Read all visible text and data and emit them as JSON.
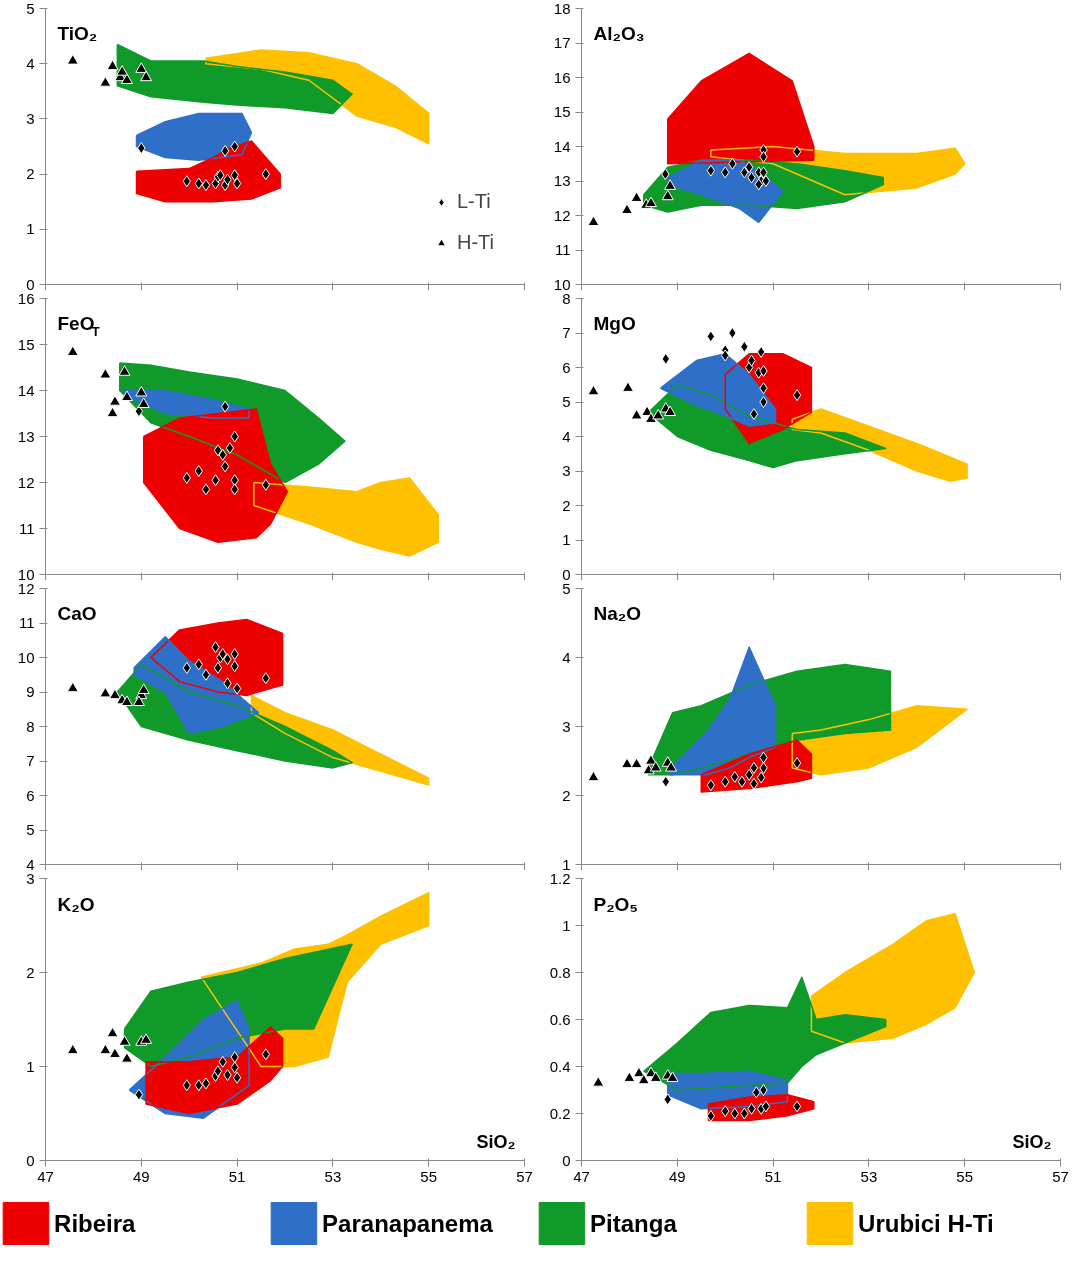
{
  "chart_data": [
    {
      "type": "scatter",
      "title": "TiO₂",
      "xlim": [
        47,
        57
      ],
      "xticks": [
        47,
        49,
        51,
        53,
        55,
        57
      ],
      "ylim": [
        0,
        5
      ],
      "yticks": [
        0,
        1,
        2,
        3,
        4,
        5
      ],
      "tick_labels": "y",
      "legend": "bottom right",
      "series": [
        {
          "type": "area",
          "color": "#ffc000",
          "x": [
            50.35,
            51.5,
            52.5,
            53.5,
            54.3,
            55,
            55,
            54.3,
            53.5,
            52.5,
            51.5,
            50.35
          ],
          "values": [
            4.1,
            4.25,
            4.2,
            4.0,
            3.6,
            3.1,
            2.55,
            2.85,
            3.05,
            3.7,
            3.9,
            4.0
          ]
        },
        {
          "type": "area",
          "color": "#109a2a",
          "x": [
            48.5,
            49.2,
            50.3,
            51,
            52,
            53,
            53.4,
            53,
            52,
            51,
            50.3,
            49.2,
            48.5
          ],
          "values": [
            4.35,
            4.05,
            4.05,
            3.95,
            3.85,
            3.7,
            3.45,
            3.1,
            3.2,
            3.25,
            3.3,
            3.4,
            3.6
          ]
        },
        {
          "type": "area",
          "color": "#2e6fc8",
          "x": [
            48.9,
            49.5,
            50.2,
            51.1,
            51.3,
            51.1,
            50.2,
            49.5,
            48.9
          ],
          "values": [
            2.7,
            2.95,
            3.1,
            3.1,
            2.75,
            2.35,
            2.25,
            2.3,
            2.5
          ]
        },
        {
          "type": "area",
          "color": "#ee0000",
          "x": [
            48.9,
            49.5,
            50.0,
            50.5,
            50.8,
            51.3,
            51.9,
            51.9,
            51.3,
            50.5,
            49.5,
            48.9
          ],
          "values": [
            2.05,
            2.08,
            2.1,
            2.3,
            2.45,
            2.6,
            2.0,
            1.75,
            1.55,
            1.5,
            1.5,
            1.65
          ]
        },
        {
          "name": "L-Ti",
          "marker": "diamond",
          "color": "#000000",
          "x": [
            49.0,
            49.95,
            50.2,
            50.35,
            50.55,
            50.6,
            50.75,
            50.75,
            50.8,
            50.95,
            50.95,
            51.0,
            51.6,
            50.65
          ],
          "values": [
            2.47,
            1.87,
            1.83,
            1.8,
            1.83,
            1.95,
            1.8,
            2.42,
            1.9,
            1.98,
            2.5,
            1.83,
            2.0,
            1.98
          ]
        },
        {
          "name": "H-Ti",
          "marker": "triangle",
          "color": "#000000",
          "x": [
            47.57,
            48.25,
            48.4,
            48.56,
            48.7,
            48.6,
            49.0,
            49.1
          ],
          "values": [
            4.05,
            3.65,
            3.95,
            3.75,
            3.7,
            3.85,
            3.9,
            3.75
          ]
        }
      ]
    },
    {
      "type": "scatter",
      "title": "Al₂O₃",
      "xlim": [
        47,
        57
      ],
      "xticks": [
        47,
        49,
        51,
        53,
        55,
        57
      ],
      "ylim": [
        10,
        18
      ],
      "yticks": [
        10,
        11,
        12,
        13,
        14,
        15,
        16,
        17,
        18
      ],
      "tick_labels": "y",
      "series": [
        {
          "type": "area",
          "color": "#ffc000",
          "x": [
            49.7,
            51,
            52.5,
            54,
            54.8,
            55,
            54.8,
            54,
            52.5,
            51,
            49.7
          ],
          "values": [
            13.9,
            14.0,
            13.8,
            13.8,
            13.95,
            13.5,
            13.2,
            12.8,
            12.6,
            13.5,
            13.7
          ]
        },
        {
          "type": "area",
          "color": "#109a2a",
          "x": [
            48.3,
            48.8,
            49.5,
            50.5,
            51.5,
            52.5,
            53.3,
            53.3,
            52.5,
            51.5,
            50.5,
            49.5,
            48.8,
            48.3
          ],
          "values": [
            12.6,
            13.4,
            13.6,
            13.6,
            13.5,
            13.3,
            13.1,
            12.9,
            12.4,
            12.2,
            12.3,
            12.3,
            12.1,
            12.3
          ]
        },
        {
          "type": "area",
          "color": "#ee0000",
          "x": [
            48.8,
            49.5,
            50.5,
            51.4,
            51.85,
            51.85,
            48.8
          ],
          "values": [
            14.8,
            15.9,
            16.7,
            15.9,
            14.0,
            13.6,
            13.5
          ]
        },
        {
          "type": "area",
          "color": "#2e6fc8",
          "x": [
            48.8,
            49.5,
            50.3,
            50.7,
            51.2,
            50.7,
            50.3,
            49.5,
            48.8
          ],
          "values": [
            13.1,
            13.6,
            13.6,
            13.3,
            12.7,
            11.8,
            12.2,
            12.6,
            12.9
          ]
        },
        {
          "marker": "diamond",
          "color": "#000000",
          "x": [
            48.75,
            49.7,
            50.0,
            50.15,
            50.4,
            50.5,
            50.55,
            50.7,
            50.75,
            50.8,
            50.8,
            50.8,
            50.7,
            50.85,
            51.5
          ],
          "values": [
            13.2,
            13.3,
            13.25,
            13.5,
            13.25,
            13.4,
            13.1,
            13.25,
            13.0,
            13.25,
            13.9,
            13.7,
            12.9,
            13.0,
            13.85
          ]
        },
        {
          "marker": "triangle",
          "color": "#000000",
          "x": [
            47.25,
            47.95,
            48.15,
            48.35,
            48.45,
            48.8,
            48.85
          ],
          "values": [
            11.8,
            12.15,
            12.5,
            12.3,
            12.35,
            12.55,
            12.85
          ]
        }
      ]
    },
    {
      "type": "scatter",
      "title": "FeO$_{T}$",
      "xlim": [
        47,
        57
      ],
      "xticks": [
        47,
        49,
        51,
        53,
        55,
        57
      ],
      "ylim": [
        10,
        16
      ],
      "yticks": [
        10,
        11,
        12,
        13,
        14,
        15,
        16
      ],
      "tick_labels": "y",
      "series": [
        {
          "type": "area",
          "color": "#ffc000",
          "x": [
            51.35,
            52.5,
            53.5,
            54,
            54.6,
            55.2,
            55.2,
            54.6,
            54,
            53.5,
            52.5,
            51.35
          ],
          "values": [
            12.0,
            11.9,
            11.8,
            12.0,
            12.1,
            11.3,
            10.7,
            10.4,
            10.55,
            10.7,
            11.1,
            11.5
          ]
        },
        {
          "type": "area",
          "color": "#109a2a",
          "x": [
            48.55,
            49.2,
            50,
            51,
            52,
            52.7,
            53.25,
            52.7,
            52,
            51,
            50,
            49.2,
            48.55
          ],
          "values": [
            14.6,
            14.55,
            14.4,
            14.25,
            14.0,
            13.4,
            12.9,
            12.4,
            12.0,
            12.6,
            13.0,
            13.3,
            14.0
          ]
        },
        {
          "type": "area",
          "color": "#2e6fc8",
          "x": [
            48.65,
            49.5,
            50.5,
            51.25,
            51.25,
            50.5,
            49.5,
            48.65
          ],
          "values": [
            14.0,
            14.0,
            13.8,
            13.6,
            13.4,
            13.4,
            13.5,
            13.9
          ]
        },
        {
          "type": "area",
          "color": "#ee0000",
          "x": [
            49.05,
            49.8,
            50.6,
            51.4,
            51.7,
            52.05,
            51.7,
            51.4,
            50.6,
            49.8,
            49.05
          ],
          "values": [
            13.0,
            13.4,
            13.5,
            13.6,
            12.4,
            11.8,
            11.1,
            10.8,
            10.7,
            11.0,
            12.0
          ]
        },
        {
          "marker": "diamond",
          "color": "#000000",
          "x": [
            48.95,
            50.75,
            49.95,
            50.2,
            50.35,
            50.55,
            50.6,
            50.7,
            50.75,
            50.85,
            50.95,
            50.95,
            50.95,
            51.6
          ],
          "values": [
            13.55,
            13.65,
            12.1,
            12.25,
            11.85,
            12.05,
            12.7,
            12.6,
            12.35,
            12.75,
            13.0,
            12.05,
            11.85,
            11.95
          ]
        },
        {
          "marker": "triangle",
          "color": "#000000",
          "x": [
            47.57,
            48.25,
            48.45,
            48.4,
            48.7,
            48.65,
            49.0,
            49.05
          ],
          "values": [
            14.83,
            14.34,
            13.75,
            13.5,
            13.85,
            14.4,
            13.95,
            13.7
          ]
        }
      ]
    },
    {
      "type": "scatter",
      "title": "MgO",
      "xlim": [
        47,
        57
      ],
      "xticks": [
        47,
        49,
        51,
        53,
        55,
        57
      ],
      "ylim": [
        0,
        8
      ],
      "yticks": [
        0,
        1,
        2,
        3,
        4,
        5,
        6,
        7,
        8
      ],
      "tick_labels": "y",
      "series": [
        {
          "type": "area",
          "color": "#ffc000",
          "x": [
            51.4,
            52,
            53,
            54,
            54.7,
            55.05,
            55.05,
            54.7,
            54,
            53,
            52,
            51.4
          ],
          "values": [
            4.5,
            4.8,
            4.3,
            3.8,
            3.4,
            3.2,
            2.8,
            2.7,
            3.0,
            3.6,
            4.1,
            4.2
          ]
        },
        {
          "type": "area",
          "color": "#109a2a",
          "x": [
            48.4,
            49.0,
            49.7,
            50.5,
            51,
            51.5,
            52.5,
            53.35,
            52.5,
            51.5,
            51,
            50.5,
            49.7,
            49.0
          ],
          "values": [
            4.7,
            5.5,
            5.2,
            4.6,
            4.4,
            4.2,
            4.1,
            3.65,
            3.5,
            3.3,
            3.1,
            3.3,
            3.6,
            4.0
          ]
        },
        {
          "type": "area",
          "color": "#ee0000",
          "x": [
            50,
            50.5,
            51.2,
            51.8,
            51.8,
            51.2,
            50.5,
            50
          ],
          "values": [
            5.8,
            6.4,
            6.4,
            6.0,
            4.7,
            4.2,
            3.8,
            4.8
          ]
        },
        {
          "type": "area",
          "color": "#2e6fc8",
          "x": [
            48.65,
            49.4,
            50,
            50.5,
            51.05,
            51.05,
            50.5,
            50,
            49.4
          ],
          "values": [
            5.4,
            6.2,
            6.4,
            5.8,
            4.8,
            4.4,
            4.3,
            4.6,
            4.9
          ]
        },
        {
          "marker": "diamond",
          "color": "#000000",
          "x": [
            48.76,
            49.7,
            50.0,
            50.0,
            50.15,
            50.4,
            50.5,
            50.55,
            50.7,
            50.75,
            50.8,
            50.8,
            50.8,
            50.6,
            51.5
          ],
          "values": [
            6.25,
            6.9,
            6.5,
            6.35,
            7.0,
            6.6,
            6.0,
            6.2,
            5.85,
            6.45,
            5.9,
            5.4,
            5.0,
            4.65,
            5.2
          ]
        },
        {
          "marker": "triangle",
          "color": "#000000",
          "x": [
            47.25,
            47.97,
            48.15,
            48.37,
            48.45,
            48.6,
            48.76,
            48.85
          ],
          "values": [
            5.3,
            5.4,
            4.6,
            4.7,
            4.5,
            4.6,
            4.8,
            4.7
          ]
        }
      ]
    },
    {
      "type": "scatter",
      "title": "CaO",
      "xlim": [
        47,
        57
      ],
      "xticks": [
        47,
        49,
        51,
        53,
        55,
        57
      ],
      "ylim": [
        4,
        12
      ],
      "yticks": [
        4,
        5,
        6,
        7,
        8,
        9,
        10,
        11,
        12
      ],
      "tick_labels": "y",
      "series": [
        {
          "type": "area",
          "color": "#ffc000",
          "x": [
            51.3,
            52,
            53,
            54,
            55,
            55,
            54,
            53,
            52,
            51.3
          ],
          "values": [
            8.9,
            8.4,
            7.9,
            7.2,
            6.5,
            6.3,
            6.7,
            7.1,
            7.8,
            8.4
          ]
        },
        {
          "type": "area",
          "color": "#109a2a",
          "x": [
            48.5,
            49,
            50,
            51,
            52,
            53,
            53.4,
            53,
            52,
            51,
            50,
            49
          ],
          "values": [
            9.0,
            9.8,
            9.0,
            8.6,
            8.0,
            7.3,
            6.95,
            6.8,
            7.0,
            7.3,
            7.6,
            8.0
          ]
        },
        {
          "type": "area",
          "color": "#ee0000",
          "x": [
            49.2,
            49.8,
            50.6,
            51.2,
            51.95,
            51.95,
            51.2,
            50.6,
            49.8
          ],
          "values": [
            10.0,
            10.8,
            11.0,
            11.1,
            10.7,
            9.2,
            8.9,
            9.0,
            9.3
          ]
        },
        {
          "type": "area",
          "color": "#2e6fc8",
          "x": [
            48.85,
            49.5,
            50.0,
            50.7,
            51.45,
            50.7,
            50.0,
            49.5,
            48.85
          ],
          "values": [
            9.7,
            10.6,
            9.9,
            9.3,
            8.4,
            8.0,
            7.8,
            9.0,
            9.5
          ]
        },
        {
          "marker": "diamond",
          "color": "#000000",
          "x": [
            49.95,
            50.2,
            50.35,
            50.55,
            50.65,
            50.6,
            50.7,
            50.8,
            50.95,
            50.95,
            51.0,
            51.6,
            50.8
          ],
          "values": [
            9.7,
            9.8,
            9.5,
            10.3,
            10.0,
            9.7,
            10.1,
            9.25,
            10.1,
            9.75,
            9.1,
            9.4,
            9.95
          ]
        },
        {
          "marker": "triangle",
          "color": "#000000",
          "x": [
            47.57,
            48.25,
            48.45,
            48.6,
            48.7,
            49.0,
            49.05,
            48.95
          ],
          "values": [
            9.1,
            8.95,
            8.9,
            8.75,
            8.7,
            8.9,
            9.05,
            8.7
          ]
        }
      ]
    },
    {
      "type": "scatter",
      "title": "Na₂O",
      "xlim": [
        47,
        57
      ],
      "xticks": [
        47,
        49,
        51,
        53,
        55,
        57
      ],
      "ylim": [
        1,
        5
      ],
      "yticks": [
        1,
        2,
        3,
        4,
        5
      ],
      "tick_labels": "y",
      "series": [
        {
          "type": "area",
          "color": "#ffc000",
          "x": [
            51.4,
            52,
            53,
            54,
            55.05,
            54,
            53,
            52,
            51.4
          ],
          "values": [
            2.9,
            2.95,
            3.1,
            3.3,
            3.25,
            2.7,
            2.4,
            2.3,
            2.4
          ]
        },
        {
          "type": "area",
          "color": "#109a2a",
          "x": [
            48.4,
            48.9,
            49.5,
            50.5,
            51.5,
            52.5,
            53.45,
            53.45,
            52.5,
            51.5,
            50.5,
            49.5,
            48.9,
            48.4
          ],
          "values": [
            2.4,
            3.2,
            3.3,
            3.6,
            3.8,
            3.9,
            3.8,
            2.95,
            2.9,
            2.8,
            2.6,
            2.4,
            2.3,
            2.3
          ]
        },
        {
          "type": "area",
          "color": "#2e6fc8",
          "x": [
            48.85,
            49.6,
            50.1,
            50.5,
            51.05,
            51.05,
            50.5,
            50.1,
            49.6,
            48.85
          ],
          "values": [
            2.4,
            2.9,
            3.4,
            4.15,
            3.3,
            2.7,
            2.55,
            2.4,
            2.3,
            2.3
          ]
        },
        {
          "type": "area",
          "color": "#ee0000",
          "x": [
            49.5,
            50.5,
            51.5,
            51.8,
            51.8,
            51.5,
            50.5,
            49.5
          ],
          "values": [
            2.3,
            2.6,
            2.8,
            2.6,
            2.25,
            2.2,
            2.1,
            2.05
          ]
        },
        {
          "marker": "diamond",
          "color": "#000000",
          "x": [
            48.76,
            49.7,
            50.0,
            50.2,
            50.35,
            50.5,
            50.6,
            50.6,
            50.75,
            50.8,
            50.8,
            51.5
          ],
          "values": [
            2.2,
            2.15,
            2.2,
            2.27,
            2.2,
            2.3,
            2.4,
            2.17,
            2.26,
            2.4,
            2.55,
            2.47
          ]
        },
        {
          "marker": "triangle",
          "color": "#000000",
          "x": [
            47.25,
            47.95,
            48.15,
            48.4,
            48.45,
            48.55,
            48.8,
            48.87
          ],
          "values": [
            2.26,
            2.45,
            2.45,
            2.36,
            2.5,
            2.4,
            2.47,
            2.4
          ]
        }
      ]
    },
    {
      "type": "scatter",
      "title": "K₂O",
      "xlabel": "SiO₂",
      "xlim": [
        47,
        57
      ],
      "xticks": [
        47,
        49,
        51,
        53,
        55,
        57
      ],
      "ylim": [
        0,
        3
      ],
      "yticks": [
        0,
        1,
        2,
        3
      ],
      "series": [
        {
          "type": "area",
          "color": "#ffc000",
          "x": [
            50.25,
            51.5,
            52.2,
            52.9,
            53.3,
            54,
            55,
            55,
            54,
            53.3,
            52.9,
            52.2,
            51.5
          ],
          "values": [
            1.95,
            2.1,
            2.25,
            2.3,
            2.4,
            2.6,
            2.85,
            2.5,
            2.3,
            1.9,
            1.1,
            1.0,
            1.0
          ]
        },
        {
          "type": "area",
          "color": "#109a2a",
          "x": [
            48.65,
            49.2,
            50,
            51,
            52,
            53.4,
            52.6,
            52,
            51,
            50,
            49.2,
            48.65
          ],
          "values": [
            1.4,
            1.8,
            1.9,
            2.0,
            2.15,
            2.3,
            1.4,
            1.4,
            1.3,
            1.1,
            1.0,
            1.2
          ]
        },
        {
          "type": "area",
          "color": "#2e6fc8",
          "x": [
            48.75,
            49.5,
            50.3,
            51.0,
            51.25,
            51.25,
            50.3,
            49.5
          ],
          "values": [
            0.75,
            1.1,
            1.5,
            1.7,
            1.4,
            0.8,
            0.45,
            0.5
          ]
        },
        {
          "type": "area",
          "color": "#ee0000",
          "x": [
            49.1,
            50,
            51,
            51.7,
            51.95,
            51.95,
            51.7,
            51,
            50,
            49.1
          ],
          "values": [
            1.05,
            1.05,
            1.1,
            1.42,
            1.3,
            1.0,
            0.85,
            0.6,
            0.5,
            0.6
          ]
        },
        {
          "marker": "diamond",
          "color": "#000000",
          "x": [
            48.95,
            49.95,
            50.2,
            50.35,
            50.55,
            50.6,
            50.7,
            50.8,
            50.95,
            50.95,
            51.0,
            51.6
          ],
          "values": [
            0.7,
            0.8,
            0.8,
            0.82,
            0.9,
            0.95,
            1.05,
            0.91,
            1.1,
            0.99,
            0.88,
            1.13
          ]
        },
        {
          "marker": "triangle",
          "color": "#000000",
          "x": [
            47.57,
            48.25,
            48.4,
            48.45,
            48.65,
            48.7,
            49.0,
            49.1
          ],
          "values": [
            1.17,
            1.17,
            1.35,
            1.13,
            1.26,
            1.08,
            1.26,
            1.28
          ]
        }
      ]
    },
    {
      "type": "scatter",
      "title": "P₂O₅",
      "xlabel": "SiO₂",
      "xlim": [
        47,
        57
      ],
      "xticks": [
        47,
        49,
        51,
        53,
        55,
        57
      ],
      "ylim": [
        0,
        1.2
      ],
      "yticks": [
        0,
        0.2,
        0.4,
        0.6,
        0.8,
        1,
        1.2
      ],
      "legend": "bottom",
      "series": [
        {
          "type": "area",
          "name": "Urubici H-Ti",
          "color": "#ffc000",
          "x": [
            51.8,
            52.5,
            53.5,
            54.2,
            54.8,
            55.2,
            54.8,
            54.2,
            53.5,
            52.5,
            51.8
          ],
          "values": [
            0.7,
            0.8,
            0.92,
            1.02,
            1.05,
            0.8,
            0.65,
            0.58,
            0.52,
            0.5,
            0.55
          ]
        },
        {
          "type": "area",
          "name": "Pitanga",
          "color": "#109a2a",
          "x": [
            48.3,
            49,
            49.7,
            50.5,
            51.3,
            51.6,
            51.9,
            52.5,
            53.35,
            53.35,
            52.5,
            51.9,
            51.6,
            51.3,
            50.5,
            49.7,
            49
          ],
          "values": [
            0.38,
            0.5,
            0.63,
            0.66,
            0.65,
            0.78,
            0.6,
            0.62,
            0.6,
            0.57,
            0.5,
            0.45,
            0.4,
            0.33,
            0.32,
            0.31,
            0.3
          ]
        },
        {
          "type": "area",
          "name": "Paranapanema",
          "color": "#2e6fc8",
          "x": [
            48.8,
            49.5,
            50.5,
            51.3,
            51.3,
            50.5,
            49.5,
            48.8
          ],
          "values": [
            0.37,
            0.37,
            0.38,
            0.34,
            0.25,
            0.23,
            0.22,
            0.28
          ]
        },
        {
          "type": "area",
          "name": "Ribeira",
          "color": "#ee0000",
          "x": [
            49.65,
            50.5,
            51.3,
            51.85,
            51.85,
            51.3,
            50.5,
            49.65
          ],
          "values": [
            0.24,
            0.27,
            0.28,
            0.25,
            0.22,
            0.19,
            0.17,
            0.17
          ]
        },
        {
          "marker": "diamond",
          "color": "#000000",
          "x": [
            48.8,
            49.7,
            50.0,
            50.2,
            50.4,
            50.55,
            50.65,
            50.75,
            50.8,
            50.85,
            51.5
          ],
          "values": [
            0.26,
            0.19,
            0.21,
            0.2,
            0.2,
            0.22,
            0.29,
            0.22,
            0.3,
            0.23,
            0.23
          ]
        },
        {
          "marker": "triangle",
          "color": "#000000",
          "x": [
            47.35,
            48.0,
            48.2,
            48.3,
            48.45,
            48.55,
            48.8,
            48.9
          ],
          "values": [
            0.33,
            0.35,
            0.37,
            0.34,
            0.37,
            0.35,
            0.36,
            0.35
          ]
        }
      ]
    }
  ]
}
